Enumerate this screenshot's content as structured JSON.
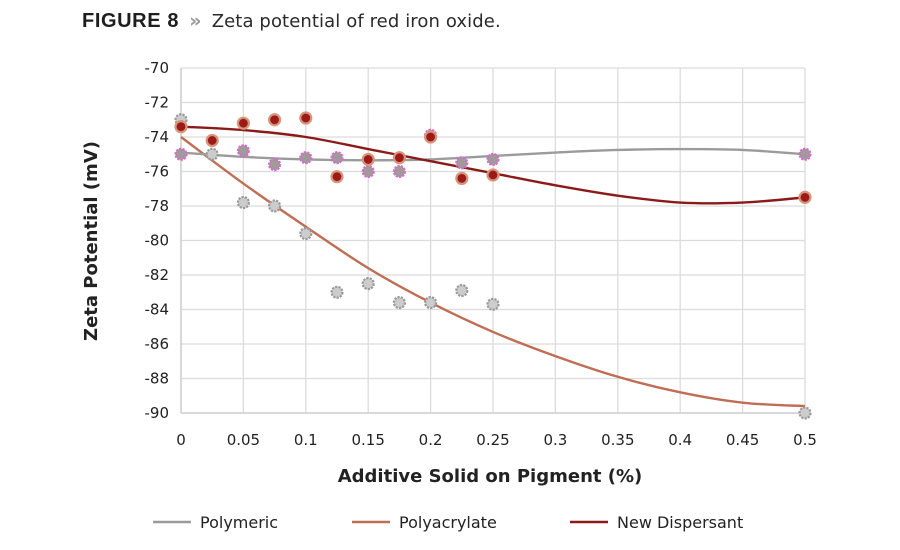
{
  "header": {
    "figure_label": "FIGURE 8",
    "separator": "»",
    "caption": "Zeta potential of red iron oxide."
  },
  "chart_data": {
    "type": "scatter",
    "title": "Zeta potential of red iron oxide.",
    "xlabel": "Additive Solid on Pigment (%)",
    "ylabel": "Zeta Potential (mV)",
    "xlim": [
      0,
      0.5
    ],
    "ylim": [
      -90,
      -70
    ],
    "xticks": [
      0,
      0.05,
      0.1,
      0.15,
      0.2,
      0.25,
      0.3,
      0.35,
      0.4,
      0.45,
      0.5
    ],
    "xtick_labels": [
      "0",
      "0.05",
      "0.1",
      "0.15",
      "0.2",
      "0.25",
      "0.3",
      "0.35",
      "0.4",
      "0.45",
      "0.5"
    ],
    "yticks": [
      -70,
      -72,
      -74,
      -76,
      -78,
      -80,
      -82,
      -84,
      -86,
      -88,
      -90
    ],
    "ytick_labels": [
      "-70",
      "-72",
      "-74",
      "-76",
      "-78",
      "-80",
      "-82",
      "-84",
      "-86",
      "-88",
      "-90"
    ],
    "grid": true,
    "legend_position": "bottom",
    "series": [
      {
        "name": "Polymeric",
        "color": "#9b9b9b",
        "marker_fill": "#a09a9a",
        "marker_edge": "#d070c8",
        "points": [
          {
            "x": 0,
            "y": -75.0
          },
          {
            "x": 0.05,
            "y": -74.8
          },
          {
            "x": 0.075,
            "y": -75.6
          },
          {
            "x": 0.1,
            "y": -75.2
          },
          {
            "x": 0.125,
            "y": -75.2
          },
          {
            "x": 0.15,
            "y": -76.0
          },
          {
            "x": 0.175,
            "y": -76.0
          },
          {
            "x": 0.2,
            "y": -73.9
          },
          {
            "x": 0.225,
            "y": -75.5
          },
          {
            "x": 0.25,
            "y": -75.3
          },
          {
            "x": 0.5,
            "y": -75.0
          }
        ],
        "trend": [
          {
            "x": 0,
            "y": -74.9
          },
          {
            "x": 0.05,
            "y": -75.15
          },
          {
            "x": 0.1,
            "y": -75.3
          },
          {
            "x": 0.15,
            "y": -75.35
          },
          {
            "x": 0.2,
            "y": -75.3
          },
          {
            "x": 0.25,
            "y": -75.1
          },
          {
            "x": 0.3,
            "y": -74.9
          },
          {
            "x": 0.35,
            "y": -74.75
          },
          {
            "x": 0.4,
            "y": -74.7
          },
          {
            "x": 0.45,
            "y": -74.75
          },
          {
            "x": 0.5,
            "y": -75.0
          }
        ]
      },
      {
        "name": "Polyacrylate",
        "color": "#bf6e55",
        "marker_fill": "#cccccc",
        "marker_edge": "#9a9a9a",
        "points": [
          {
            "x": 0,
            "y": -73.0
          },
          {
            "x": 0.025,
            "y": -75.0
          },
          {
            "x": 0.05,
            "y": -77.8
          },
          {
            "x": 0.075,
            "y": -78.0
          },
          {
            "x": 0.1,
            "y": -79.6
          },
          {
            "x": 0.125,
            "y": -83.0
          },
          {
            "x": 0.15,
            "y": -82.5
          },
          {
            "x": 0.175,
            "y": -83.6
          },
          {
            "x": 0.2,
            "y": -83.6
          },
          {
            "x": 0.225,
            "y": -82.9
          },
          {
            "x": 0.25,
            "y": -83.7
          },
          {
            "x": 0.5,
            "y": -90.0
          }
        ],
        "trend": [
          {
            "x": 0,
            "y": -74.0
          },
          {
            "x": 0.05,
            "y": -76.7
          },
          {
            "x": 0.1,
            "y": -79.2
          },
          {
            "x": 0.15,
            "y": -81.6
          },
          {
            "x": 0.2,
            "y": -83.6
          },
          {
            "x": 0.25,
            "y": -85.3
          },
          {
            "x": 0.3,
            "y": -86.7
          },
          {
            "x": 0.35,
            "y": -87.9
          },
          {
            "x": 0.4,
            "y": -88.8
          },
          {
            "x": 0.45,
            "y": -89.4
          },
          {
            "x": 0.5,
            "y": -89.6
          }
        ]
      },
      {
        "name": "New Dispersant",
        "color": "#8b1a1a",
        "marker_fill": "#9b1b1b",
        "marker_edge": "#d8957a",
        "points": [
          {
            "x": 0,
            "y": -73.4
          },
          {
            "x": 0.025,
            "y": -74.2
          },
          {
            "x": 0.05,
            "y": -73.2
          },
          {
            "x": 0.075,
            "y": -73.0
          },
          {
            "x": 0.1,
            "y": -72.9
          },
          {
            "x": 0.125,
            "y": -76.3
          },
          {
            "x": 0.15,
            "y": -75.3
          },
          {
            "x": 0.175,
            "y": -75.2
          },
          {
            "x": 0.2,
            "y": -74.0
          },
          {
            "x": 0.225,
            "y": -76.4
          },
          {
            "x": 0.25,
            "y": -76.2
          },
          {
            "x": 0.5,
            "y": -77.5
          }
        ],
        "trend": [
          {
            "x": 0,
            "y": -73.4
          },
          {
            "x": 0.05,
            "y": -73.6
          },
          {
            "x": 0.1,
            "y": -74.0
          },
          {
            "x": 0.15,
            "y": -74.7
          },
          {
            "x": 0.2,
            "y": -75.4
          },
          {
            "x": 0.25,
            "y": -76.1
          },
          {
            "x": 0.3,
            "y": -76.8
          },
          {
            "x": 0.35,
            "y": -77.4
          },
          {
            "x": 0.4,
            "y": -77.8
          },
          {
            "x": 0.45,
            "y": -77.8
          },
          {
            "x": 0.5,
            "y": -77.5
          }
        ]
      }
    ]
  }
}
